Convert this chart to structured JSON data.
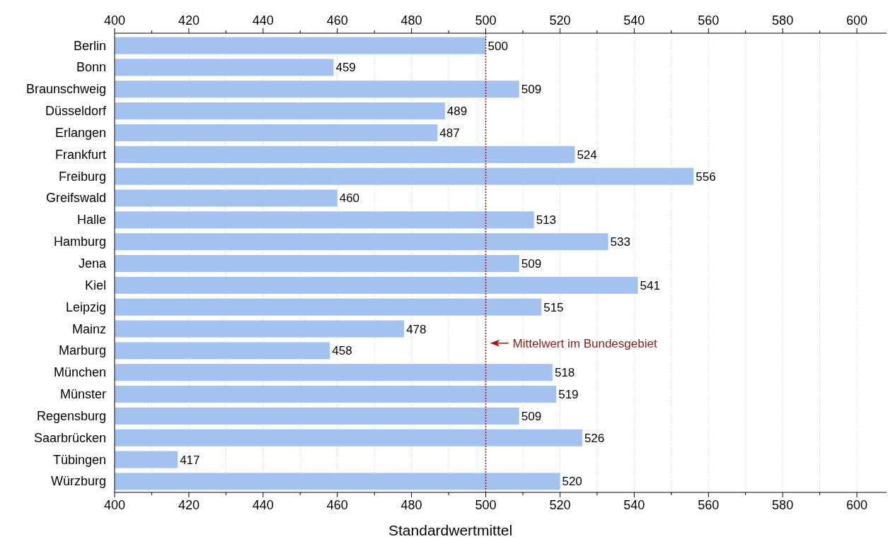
{
  "chart_data": {
    "type": "bar",
    "orientation": "horizontal",
    "xlabel": "Standardwertmittel",
    "categories": [
      "Berlin",
      "Bonn",
      "Braunschweig",
      "Düsseldorf",
      "Erlangen",
      "Frankfurt",
      "Freiburg",
      "Greifswald",
      "Halle",
      "Hamburg",
      "Jena",
      "Kiel",
      "Leipzig",
      "Mainz",
      "Marburg",
      "München",
      "Münster",
      "Regensburg",
      "Saarbrücken",
      "Tübingen",
      "Würzburg"
    ],
    "values": [
      500,
      459,
      509,
      489,
      487,
      524,
      556,
      460,
      513,
      533,
      509,
      541,
      515,
      478,
      458,
      518,
      519,
      509,
      526,
      417,
      520
    ],
    "color": "#a4c2f0",
    "data_labels": true,
    "grid": "x",
    "xlim": [
      400,
      608
    ],
    "xticks": [
      400,
      {
        "value": 410,
        "label": null
      },
      420,
      {
        "value": 430,
        "label": null
      },
      440,
      {
        "value": 450,
        "label": null
      },
      460,
      {
        "value": 470,
        "label": null
      },
      480,
      {
        "value": 490,
        "label": null
      },
      500,
      {
        "value": 510,
        "label": null
      },
      520,
      {
        "value": 530,
        "label": null
      },
      540,
      {
        "value": 550,
        "label": null
      },
      560,
      {
        "value": 570,
        "label": null
      },
      580,
      {
        "value": 590,
        "label": null
      },
      600
    ],
    "x2lim": [
      400,
      608
    ],
    "x2ticks": [
      400,
      {
        "value": 410,
        "label": null
      },
      420,
      {
        "value": 430,
        "label": null
      },
      440,
      {
        "value": 450,
        "label": null
      },
      460,
      {
        "value": 470,
        "label": null
      },
      480,
      {
        "value": 490,
        "label": null
      },
      500,
      {
        "value": 510,
        "label": null
      },
      520,
      {
        "value": 530,
        "label": null
      },
      540,
      {
        "value": 550,
        "label": null
      },
      560,
      {
        "value": 570,
        "label": null
      },
      580,
      {
        "value": 590,
        "label": null
      },
      600
    ],
    "ref_lines": [
      {
        "axis": "x",
        "value": 500,
        "label": "Mittelwert im Bundesgebiet",
        "color": "#c00000",
        "line_style": "dotted"
      }
    ]
  }
}
